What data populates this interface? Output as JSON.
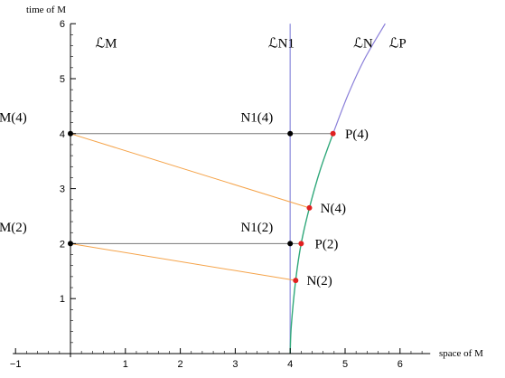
{
  "chart_data": {
    "type": "diagram",
    "xlabel": "space of M",
    "ylabel": "time of M",
    "xlim": [
      -1.05,
      6.55
    ],
    "ylim": [
      -0.1,
      6
    ],
    "xticks": [
      -1,
      1,
      2,
      3,
      4,
      5,
      6
    ],
    "yticks": [
      1,
      2,
      3,
      4,
      5,
      6
    ],
    "worldline_labels": [
      {
        "text": "ℒM",
        "x": 0.45,
        "y": 5.65
      },
      {
        "text": "ℒN1",
        "x": 3.6,
        "y": 5.65
      },
      {
        "text": "ℒN",
        "x": 5.15,
        "y": 5.65
      },
      {
        "text": "ℒP",
        "x": 5.8,
        "y": 5.65
      }
    ],
    "worldline_N1": {
      "x": 4,
      "color": "#9a9ae0"
    },
    "worldline_N": {
      "color": "#2fa87a",
      "points": [
        [
          4,
          0
        ],
        [
          4.02,
          0.5
        ],
        [
          4.1,
          1.33
        ],
        [
          4.2,
          2.0
        ],
        [
          4.35,
          2.65
        ],
        [
          4.55,
          3.35
        ],
        [
          4.78,
          4.0
        ]
      ]
    },
    "worldline_P": {
      "color": "#8a7fd9",
      "points": [
        [
          4.78,
          4.0
        ],
        [
          5.05,
          4.7
        ],
        [
          5.35,
          5.35
        ],
        [
          5.73,
          6.0
        ]
      ]
    },
    "simultaneity_lines": [
      {
        "from": [
          0,
          4
        ],
        "to": [
          4.78,
          4.0
        ],
        "color": "#777777"
      },
      {
        "from": [
          0,
          2
        ],
        "to": [
          4.2,
          2.0
        ],
        "color": "#777777"
      }
    ],
    "light_signals": [
      {
        "from": [
          0,
          4
        ],
        "to": [
          4.35,
          2.65
        ],
        "color": "#f5a349"
      },
      {
        "from": [
          0,
          2
        ],
        "to": [
          4.1,
          1.33
        ],
        "color": "#f5a349"
      }
    ],
    "points": [
      {
        "label": "M(4)",
        "x": 0,
        "y": 4,
        "color": "#000000",
        "label_dx": -1.3,
        "label_dy": 0.3
      },
      {
        "label": "M(2)",
        "x": 0,
        "y": 2,
        "color": "#000000",
        "label_dx": -1.3,
        "label_dy": 0.3
      },
      {
        "label": "N1(4)",
        "x": 4,
        "y": 4,
        "color": "#000000",
        "label_dx": -0.9,
        "label_dy": 0.3
      },
      {
        "label": "N1(2)",
        "x": 4,
        "y": 2,
        "color": "#000000",
        "label_dx": -0.9,
        "label_dy": 0.3
      },
      {
        "label": "P(4)",
        "x": 4.78,
        "y": 4.0,
        "color": "#e02020",
        "label_dx": 0.22,
        "label_dy": 0.0
      },
      {
        "label": "N(4)",
        "x": 4.35,
        "y": 2.65,
        "color": "#e02020",
        "label_dx": 0.2,
        "label_dy": 0.0
      },
      {
        "label": "P(2)",
        "x": 4.2,
        "y": 2.0,
        "color": "#e02020",
        "label_dx": 0.25,
        "label_dy": 0.0
      },
      {
        "label": "N(2)",
        "x": 4.1,
        "y": 1.33,
        "color": "#e02020",
        "label_dx": 0.2,
        "label_dy": 0.0
      }
    ]
  }
}
